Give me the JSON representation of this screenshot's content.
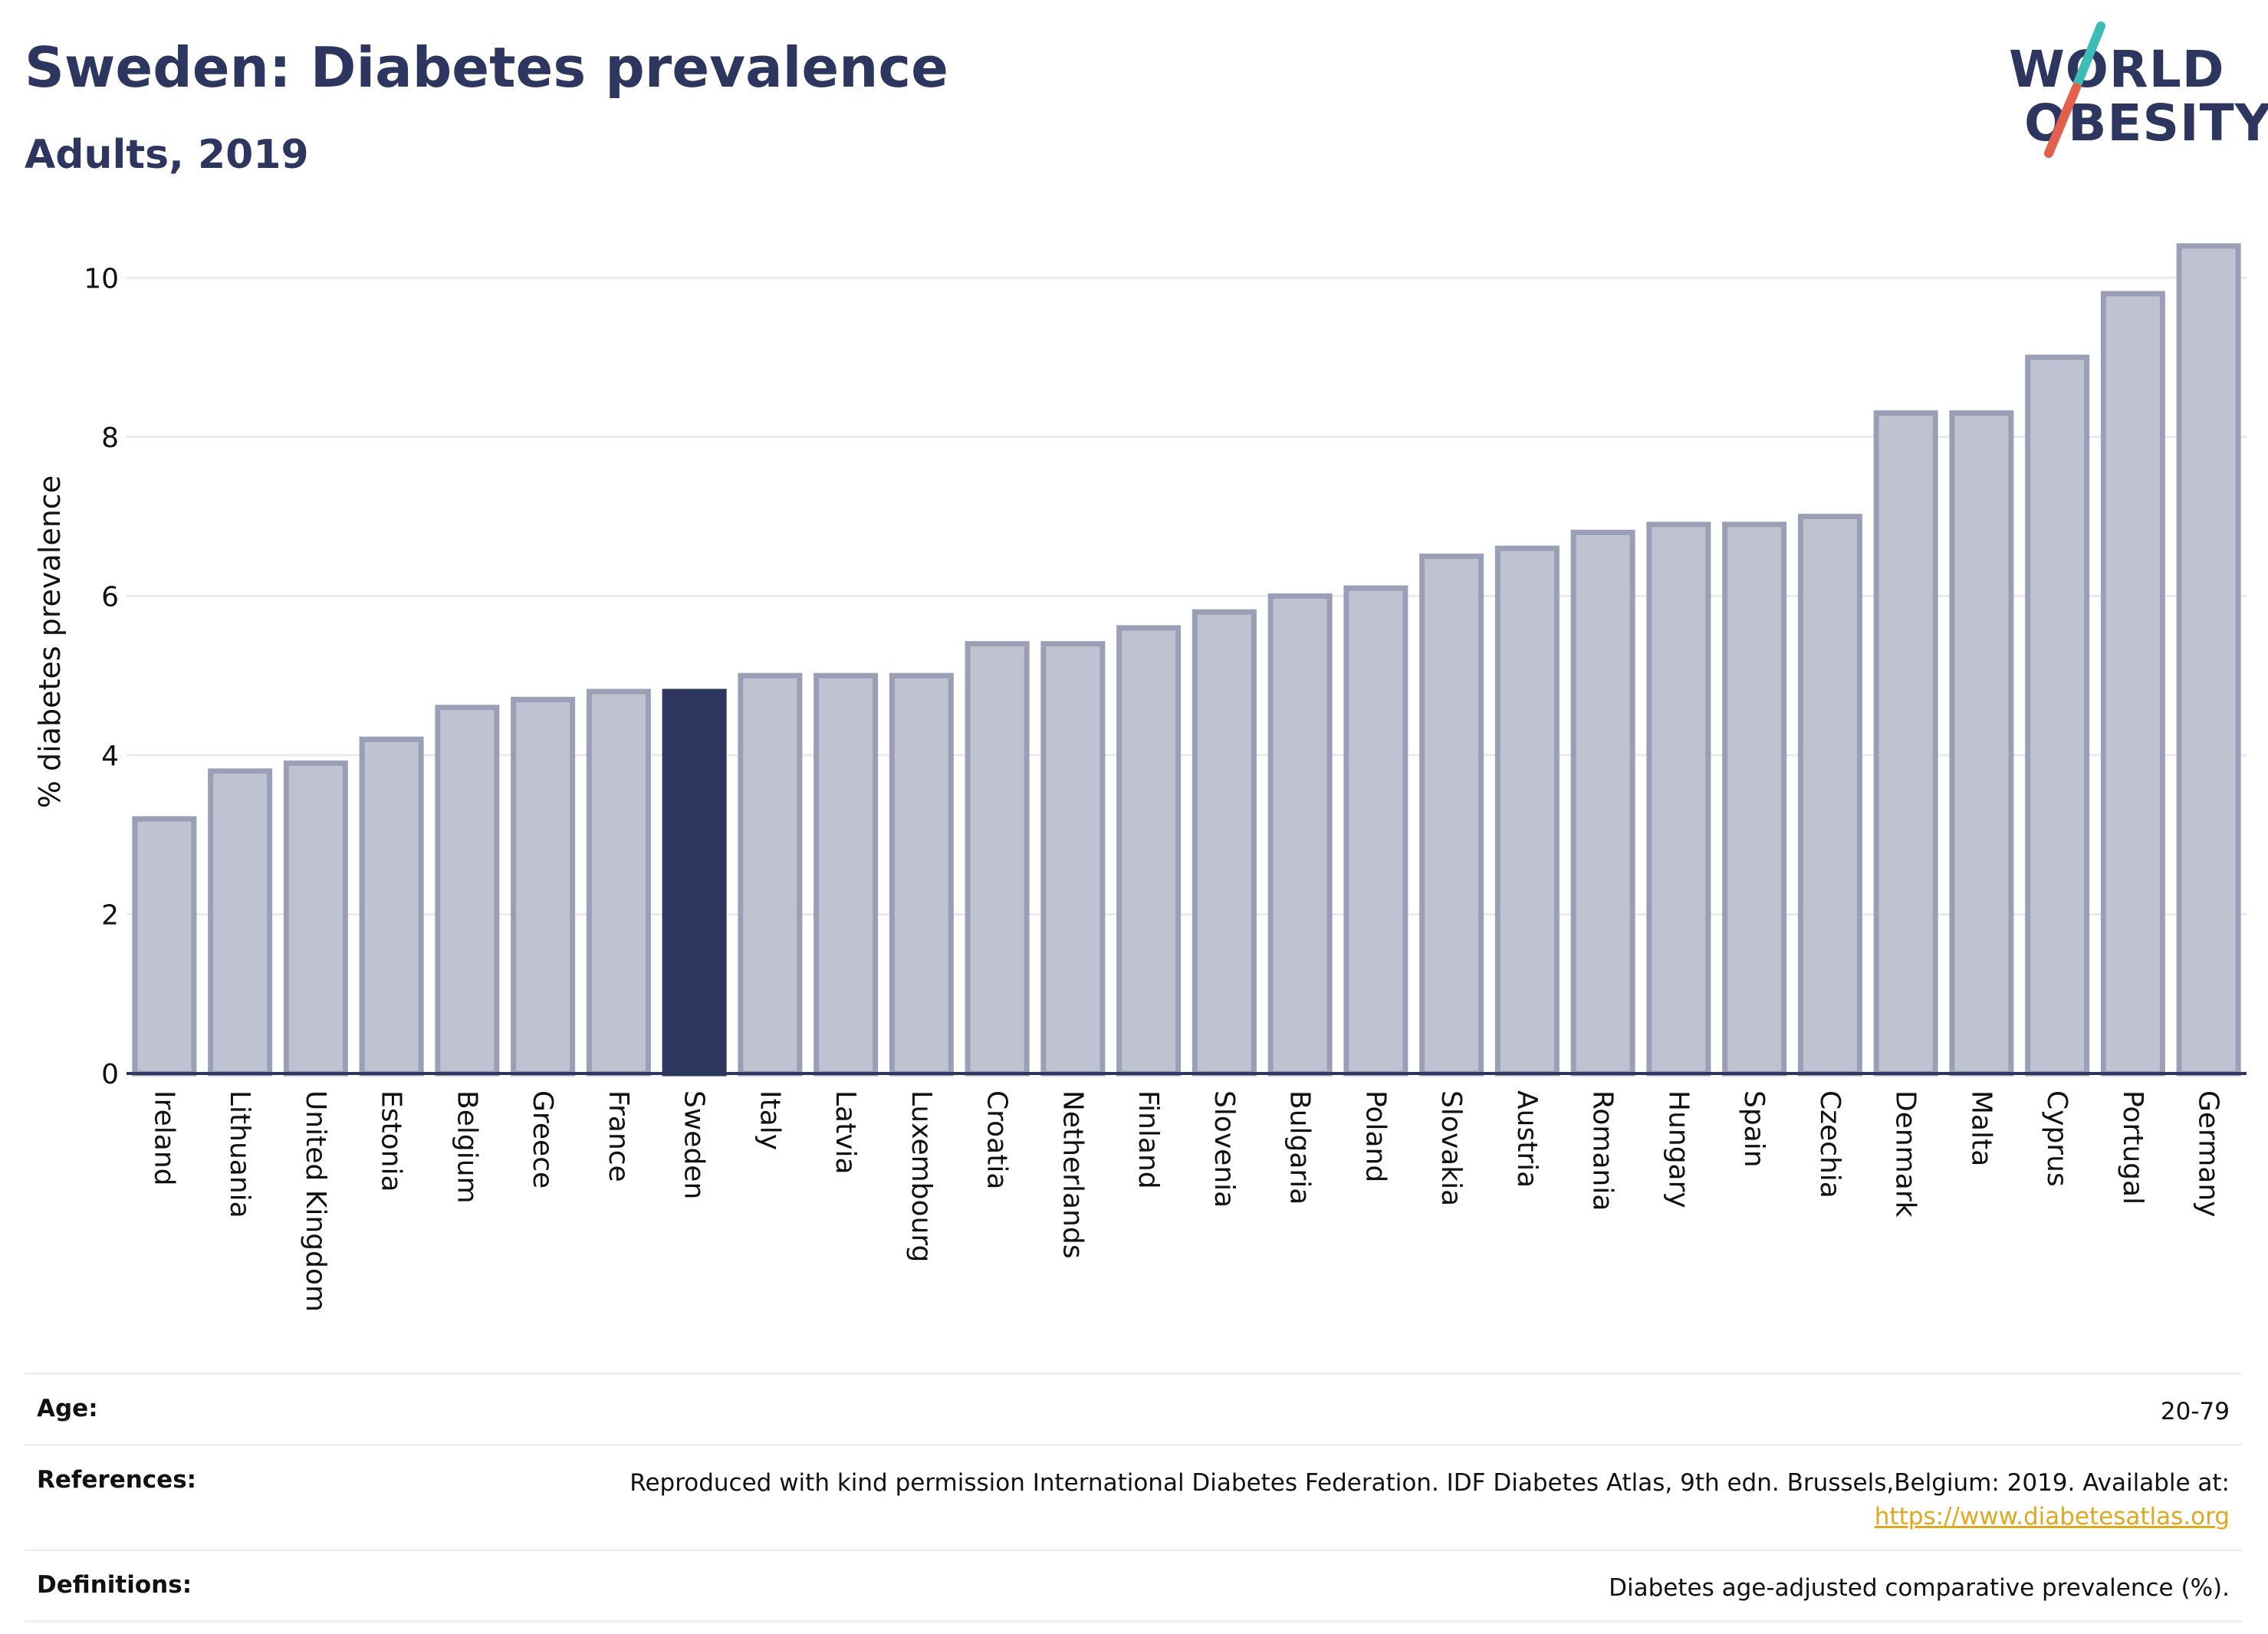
{
  "header": {
    "title": "Sweden: Diabetes prevalence",
    "subtitle": "Adults, 2019"
  },
  "logo": {
    "line1": "WORLD",
    "line2": "OBESITY",
    "colors": {
      "text": "#2c365e",
      "slash_teal": "#3cbcb4",
      "slash_red": "#e4604e"
    }
  },
  "chart_data": {
    "type": "bar",
    "title": "Sweden: Diabetes prevalence",
    "subtitle": "Adults, 2019",
    "xlabel": "",
    "ylabel": "% diabetes prevalence",
    "ylim": [
      0,
      10.6
    ],
    "yticks": [
      0,
      2,
      4,
      6,
      8,
      10
    ],
    "grid": true,
    "highlight": "Sweden",
    "colors": {
      "bar": "#bfc2d0",
      "bar_edge": "#9a9fb6",
      "highlight": "#2c365e",
      "grid": "#e8eaee",
      "axis": "#2c365e"
    },
    "categories": [
      "Ireland",
      "Lithuania",
      "United Kingdom",
      "Estonia",
      "Belgium",
      "Greece",
      "France",
      "Sweden",
      "Italy",
      "Latvia",
      "Luxembourg",
      "Croatia",
      "Netherlands",
      "Finland",
      "Slovenia",
      "Bulgaria",
      "Poland",
      "Slovakia",
      "Austria",
      "Romania",
      "Hungary",
      "Spain",
      "Czechia",
      "Denmark",
      "Malta",
      "Cyprus",
      "Portugal",
      "Germany"
    ],
    "values": [
      3.2,
      3.8,
      3.9,
      4.2,
      4.6,
      4.7,
      4.8,
      4.8,
      5.0,
      5.0,
      5.0,
      5.4,
      5.4,
      5.6,
      5.8,
      6.0,
      6.1,
      6.5,
      6.6,
      6.8,
      6.9,
      6.9,
      7.0,
      8.3,
      8.3,
      9.0,
      9.8,
      10.4
    ]
  },
  "info": {
    "age_label": "Age:",
    "age_value": "20-79",
    "references_label": "References:",
    "references_text": "Reproduced with kind permission International Diabetes Federation. IDF Diabetes Atlas, 9th edn. Brussels,Belgium: 2019. Available at:",
    "references_link": "https://www.diabetesatlas.org",
    "definitions_label": "Definitions:",
    "definitions_text": "Diabetes age-adjusted comparative prevalence (%)."
  }
}
